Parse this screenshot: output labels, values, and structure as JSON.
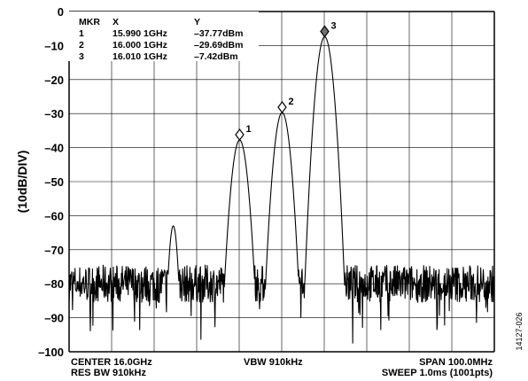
{
  "chart_data": {
    "type": "line",
    "ylabel": "(10dB/DIV)",
    "ylim": [
      -100,
      0
    ],
    "y_ticks": [
      "0",
      "–10",
      "–20",
      "–30",
      "–40",
      "–50",
      "–60",
      "–70",
      "–80",
      "–90",
      "–100"
    ],
    "x_divisions": 10,
    "xlim_ghz": [
      15.95,
      16.05
    ],
    "grid": true,
    "noise_floor_dbm": -80,
    "series": [
      {
        "x_ghz": [
          15.95,
          15.96,
          15.972,
          15.9745,
          15.976,
          15.978,
          15.99,
          16.0,
          16.01,
          16.02,
          16.03,
          16.05
        ],
        "y_dbm": [
          -80,
          -80,
          -71,
          -63,
          -70,
          -80,
          -37.77,
          -29.69,
          -7.42,
          -80,
          -80,
          -80
        ]
      }
    ],
    "marker_table": {
      "header": [
        "MKR",
        "X",
        "Y"
      ],
      "rows": [
        [
          "1",
          "15.990 1GHz",
          "–37.77dBm"
        ],
        [
          "2",
          "16.000 1GHz",
          "–29.69dBm"
        ],
        [
          "3",
          "16.010 1GHz",
          "–7.42dBm"
        ]
      ]
    },
    "markers": [
      {
        "label": "1",
        "x_ghz": 15.9901,
        "y_dbm": -37.77,
        "active": false
      },
      {
        "label": "2",
        "x_ghz": 16.0001,
        "y_dbm": -29.69,
        "active": false
      },
      {
        "label": "3",
        "x_ghz": 16.0101,
        "y_dbm": -7.42,
        "active": true
      }
    ],
    "footer": {
      "center": "CENTER  16.0GHz",
      "res_bw": "RES BW  910kHz",
      "vbw": "VBW  910kHz",
      "span": "SPAN  100.0MHz",
      "sweep": "SWEEP  1.0ms (1001pts)"
    },
    "figure_id": "14127-026"
  },
  "colors": {
    "trace": "#000000",
    "grid": "#000000",
    "marker_active": "#707070"
  }
}
